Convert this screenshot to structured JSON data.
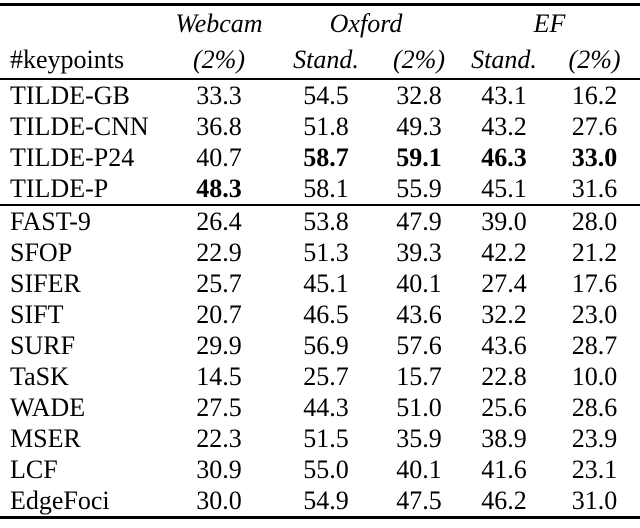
{
  "page": {
    "background_color": "#ffffff",
    "text_color": "#000000",
    "rule_color": "#000000"
  },
  "chart_data": {
    "type": "table",
    "title": "",
    "header": {
      "row_label": "#keypoints",
      "groups": [
        {
          "label": "Webcam",
          "span": 1
        },
        {
          "label": "Oxford",
          "span": 2
        },
        {
          "label": "EF",
          "span": 2
        }
      ],
      "subheaders": [
        "(2%)",
        "Stand.",
        "(2%)",
        "Stand.",
        "(2%)"
      ]
    },
    "columns": [
      "#keypoints",
      "Webcam (2%)",
      "Oxford Stand.",
      "Oxford (2%)",
      "EF Stand.",
      "EF (2%)"
    ],
    "sections": [
      {
        "rows": [
          {
            "label": "TILDE-GB",
            "values": [
              "33.3",
              "54.5",
              "32.8",
              "43.1",
              "16.2"
            ],
            "bold": []
          },
          {
            "label": "TILDE-CNN",
            "values": [
              "36.8",
              "51.8",
              "49.3",
              "43.2",
              "27.6"
            ],
            "bold": []
          },
          {
            "label": "TILDE-P24",
            "values": [
              "40.7",
              "58.7",
              "59.1",
              "46.3",
              "33.0"
            ],
            "bold": [
              1,
              2,
              3,
              4
            ]
          },
          {
            "label": "TILDE-P",
            "values": [
              "48.3",
              "58.1",
              "55.9",
              "45.1",
              "31.6"
            ],
            "bold": [
              0
            ]
          }
        ]
      },
      {
        "rows": [
          {
            "label": "FAST-9",
            "values": [
              "26.4",
              "53.8",
              "47.9",
              "39.0",
              "28.0"
            ],
            "bold": []
          },
          {
            "label": "SFOP",
            "values": [
              "22.9",
              "51.3",
              "39.3",
              "42.2",
              "21.2"
            ],
            "bold": []
          },
          {
            "label": "SIFER",
            "values": [
              "25.7",
              "45.1",
              "40.1",
              "27.4",
              "17.6"
            ],
            "bold": []
          },
          {
            "label": "SIFT",
            "values": [
              "20.7",
              "46.5",
              "43.6",
              "32.2",
              "23.0"
            ],
            "bold": []
          },
          {
            "label": "SURF",
            "values": [
              "29.9",
              "56.9",
              "57.6",
              "43.6",
              "28.7"
            ],
            "bold": []
          },
          {
            "label": "TaSK",
            "values": [
              "14.5",
              "25.7",
              "15.7",
              "22.8",
              "10.0"
            ],
            "bold": []
          },
          {
            "label": "WADE",
            "values": [
              "27.5",
              "44.3",
              "51.0",
              "25.6",
              "28.6"
            ],
            "bold": []
          },
          {
            "label": "MSER",
            "values": [
              "22.3",
              "51.5",
              "35.9",
              "38.9",
              "23.9"
            ],
            "bold": []
          },
          {
            "label": "LCF",
            "values": [
              "30.9",
              "55.0",
              "40.1",
              "41.6",
              "23.1"
            ],
            "bold": []
          },
          {
            "label": "EdgeFoci",
            "values": [
              "30.0",
              "54.9",
              "47.5",
              "46.2",
              "31.0"
            ],
            "bold": []
          }
        ]
      }
    ]
  }
}
